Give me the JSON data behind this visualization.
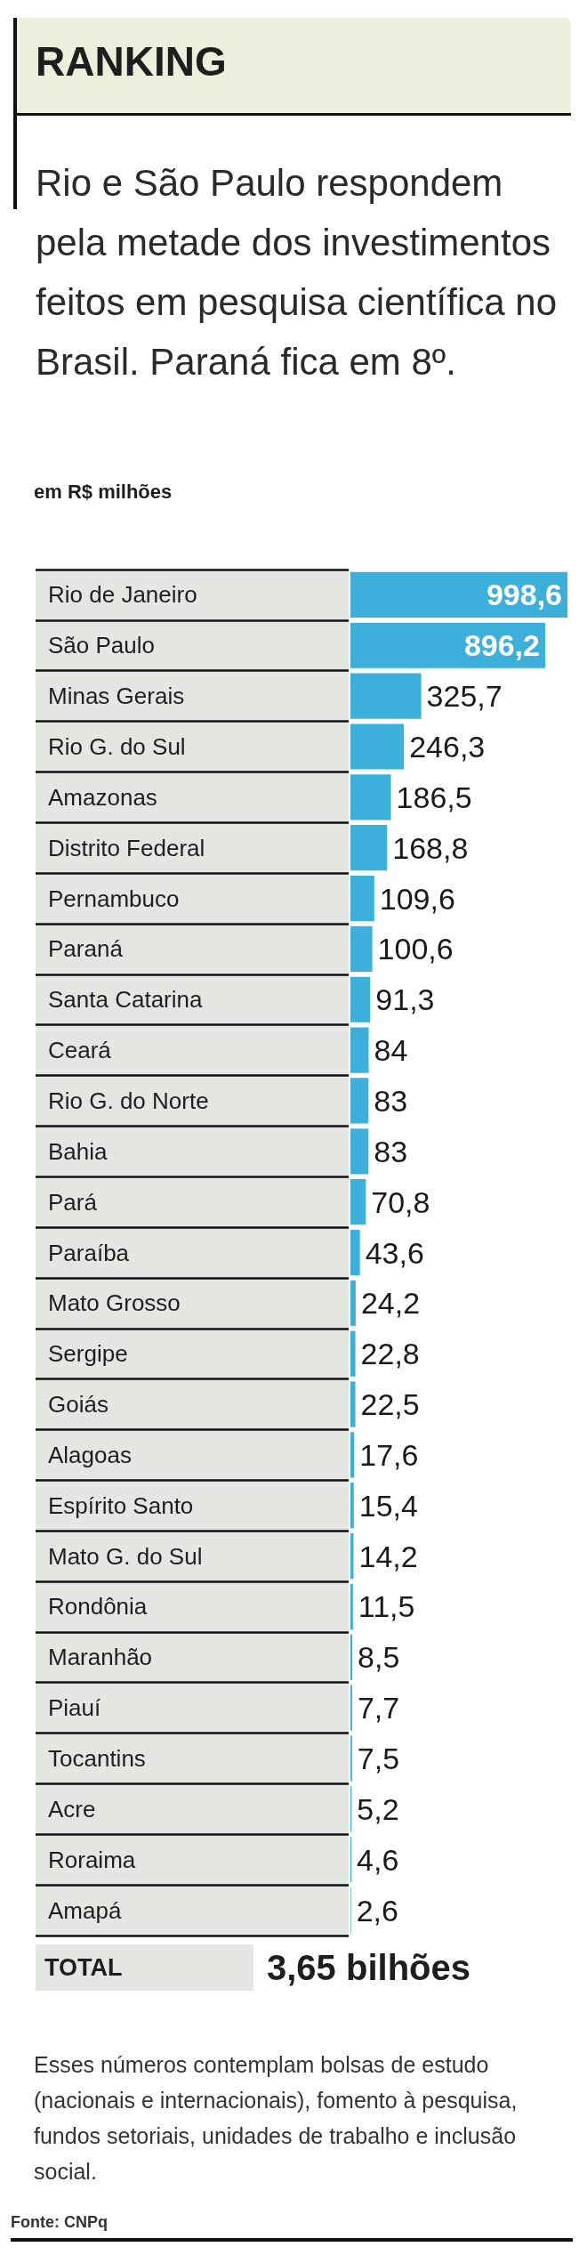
{
  "chart_data": {
    "type": "bar",
    "orientation": "horizontal",
    "title": "RANKING",
    "subtitle": "Rio e São Paulo respondem pela metade dos investimentos feitos em pesquisa científica no Brasil. Paraná fica em 8º.",
    "xlabel": "em R$ milhões",
    "categories": [
      "Rio de Janeiro",
      "São Paulo",
      "Minas Gerais",
      "Rio G. do Sul",
      "Amazonas",
      "Distrito Federal",
      "Pernambuco",
      "Paraná",
      "Santa Catarina",
      "Ceará",
      "Rio G. do Norte",
      "Bahia",
      "Pará",
      "Paraíba",
      "Mato Grosso",
      "Sergipe",
      "Goiás",
      "Alagoas",
      "Espírito Santo",
      "Mato G. do Sul",
      "Rondônia",
      "Maranhão",
      "Piauí",
      "Tocantins",
      "Acre",
      "Roraima",
      "Amapá"
    ],
    "values": [
      998.6,
      896.2,
      325.7,
      246.3,
      186.5,
      168.8,
      109.6,
      100.6,
      91.3,
      84,
      83,
      83,
      70.8,
      43.6,
      24.2,
      22.8,
      22.5,
      17.6,
      15.4,
      14.2,
      11.5,
      8.5,
      7.7,
      7.5,
      5.2,
      4.6,
      2.6
    ],
    "value_labels": [
      "998,6",
      "896,2",
      "325,7",
      "246,3",
      "186,5",
      "168,8",
      "109,6",
      "100,6",
      "91,3",
      "84",
      "83",
      "83",
      "70,8",
      "43,6",
      "24,2",
      "22,8",
      "22,5",
      "17,6",
      "15,4",
      "14,2",
      "11,5",
      "8,5",
      "7,7",
      "7,5",
      "5,2",
      "4,6",
      "2,6"
    ],
    "color": "#3cb0da",
    "annotations": [
      "TOTAL",
      "3,65 bilhões",
      "Esses números contemplam bolsas de estudo (nacionais e internacionais), fomento à pesquisa, fundos setoriais, unidades de trabalho e inclusão social.",
      "Fonte: CNPq"
    ]
  }
}
